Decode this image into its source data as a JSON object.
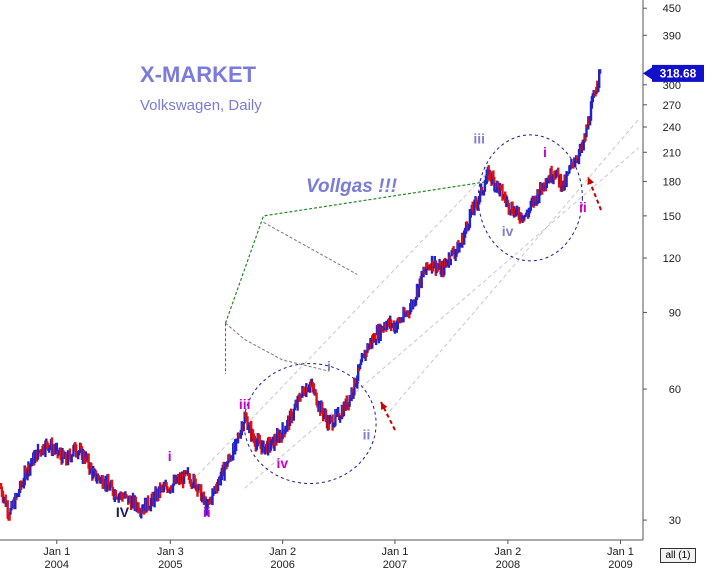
{
  "header": {
    "brand": "X-MARKET",
    "subtitle": "Volkswagen, Daily"
  },
  "annotation_text": "Vollgas !!!",
  "price_badge": "318.68",
  "all_button": "all (1)",
  "colors": {
    "brand": "#7b7bdc",
    "price_up": "#2222cc",
    "price_down": "#dd1111",
    "wave_label_magenta": "#cc00cc",
    "wave_label_blue": "#8080d0",
    "circle": "#1a1a99",
    "channel": "#c8c8c8",
    "forecast": "#228b22",
    "arrow": "#cc0000",
    "badge": "#1111cc"
  },
  "chart_data": {
    "type": "line",
    "title": "",
    "xlabel": "",
    "ylabel": "",
    "y_scale": "log",
    "ylim": [
      27,
      470
    ],
    "xlim": [
      "2003-07-01",
      "2009-03-15"
    ],
    "y_ticks": [
      30,
      60,
      90,
      120,
      150,
      180,
      210,
      240,
      270,
      300,
      390,
      450
    ],
    "x_ticks": [
      {
        "date": "2004-01-01",
        "line1": "Jan 1",
        "line2": "2004"
      },
      {
        "date": "2005-01-03",
        "line1": "Jan 3",
        "line2": "2005"
      },
      {
        "date": "2006-01-02",
        "line1": "Jan 2",
        "line2": "2006"
      },
      {
        "date": "2007-01-01",
        "line1": "Jan 1",
        "line2": "2007"
      },
      {
        "date": "2008-01-02",
        "line1": "Jan 2",
        "line2": "2008"
      },
      {
        "date": "2009-01-01",
        "line1": "Jan 1",
        "line2": "2009"
      }
    ],
    "last_price": 318.68,
    "series": [
      {
        "values": [
          [
            "2003-07-01",
            36
          ],
          [
            "2003-08-01",
            31
          ],
          [
            "2003-09-01",
            35
          ],
          [
            "2003-10-01",
            40
          ],
          [
            "2003-11-01",
            43
          ],
          [
            "2003-12-01",
            45
          ],
          [
            "2004-01-01",
            43
          ],
          [
            "2004-02-01",
            41
          ],
          [
            "2004-03-01",
            44
          ],
          [
            "2004-04-01",
            42
          ],
          [
            "2004-05-01",
            38
          ],
          [
            "2004-06-01",
            37
          ],
          [
            "2004-07-01",
            35
          ],
          [
            "2004-08-01",
            34
          ],
          [
            "2004-09-01",
            33
          ],
          [
            "2004-10-01",
            32
          ],
          [
            "2004-11-01",
            33
          ],
          [
            "2004-12-01",
            35
          ],
          [
            "2005-01-03",
            36
          ],
          [
            "2005-02-01",
            37
          ],
          [
            "2005-03-01",
            38
          ],
          [
            "2005-04-01",
            36
          ],
          [
            "2005-05-01",
            32
          ],
          [
            "2005-06-01",
            36
          ],
          [
            "2005-07-01",
            40
          ],
          [
            "2005-08-01",
            44
          ],
          [
            "2005-09-01",
            52
          ],
          [
            "2005-10-01",
            46
          ],
          [
            "2005-11-01",
            44
          ],
          [
            "2005-12-01",
            45
          ],
          [
            "2006-01-02",
            48
          ],
          [
            "2006-02-01",
            52
          ],
          [
            "2006-03-01",
            58
          ],
          [
            "2006-04-01",
            62
          ],
          [
            "2006-05-01",
            55
          ],
          [
            "2006-06-01",
            50
          ],
          [
            "2006-07-01",
            52
          ],
          [
            "2006-08-01",
            56
          ],
          [
            "2006-09-01",
            64
          ],
          [
            "2006-10-01",
            74
          ],
          [
            "2006-11-01",
            80
          ],
          [
            "2006-12-01",
            85
          ],
          [
            "2007-01-01",
            84
          ],
          [
            "2007-02-01",
            88
          ],
          [
            "2007-03-01",
            95
          ],
          [
            "2007-04-01",
            110
          ],
          [
            "2007-05-01",
            118
          ],
          [
            "2007-06-01",
            112
          ],
          [
            "2007-07-01",
            122
          ],
          [
            "2007-08-01",
            128
          ],
          [
            "2007-09-01",
            150
          ],
          [
            "2007-10-01",
            165
          ],
          [
            "2007-11-01",
            188
          ],
          [
            "2007-12-01",
            175
          ],
          [
            "2008-01-02",
            160
          ],
          [
            "2008-02-01",
            152
          ],
          [
            "2008-03-01",
            150
          ],
          [
            "2008-04-01",
            165
          ],
          [
            "2008-05-01",
            180
          ],
          [
            "2008-06-01",
            190
          ],
          [
            "2008-07-01",
            175
          ],
          [
            "2008-08-01",
            200
          ],
          [
            "2008-09-01",
            215
          ],
          [
            "2008-10-15",
            300
          ],
          [
            "2008-10-27",
            318.68
          ]
        ]
      }
    ],
    "wave_labels": [
      {
        "text": "IV",
        "date": "2004-08-01",
        "value": 30.5,
        "color": "dark"
      },
      {
        "text": "i",
        "date": "2005-01-01",
        "value": 41,
        "color": "magenta"
      },
      {
        "text": "ii",
        "date": "2005-05-01",
        "value": 30.5,
        "color": "magenta"
      },
      {
        "text": "iii",
        "date": "2005-09-01",
        "value": 54,
        "color": "magenta"
      },
      {
        "text": "iv",
        "date": "2006-01-01",
        "value": 39.5,
        "color": "magenta"
      },
      {
        "text": "i",
        "date": "2006-06-01",
        "value": 66,
        "color": "blue"
      },
      {
        "text": "ii",
        "date": "2006-10-01",
        "value": 46,
        "color": "blue"
      },
      {
        "text": "iii",
        "date": "2007-10-01",
        "value": 220,
        "color": "blue"
      },
      {
        "text": "iv",
        "date": "2008-01-01",
        "value": 135,
        "color": "blue"
      },
      {
        "text": "i",
        "date": "2008-05-01",
        "value": 205,
        "color": "magenta"
      },
      {
        "text": "ii",
        "date": "2008-09-01",
        "value": 153,
        "color": "magenta"
      }
    ]
  }
}
